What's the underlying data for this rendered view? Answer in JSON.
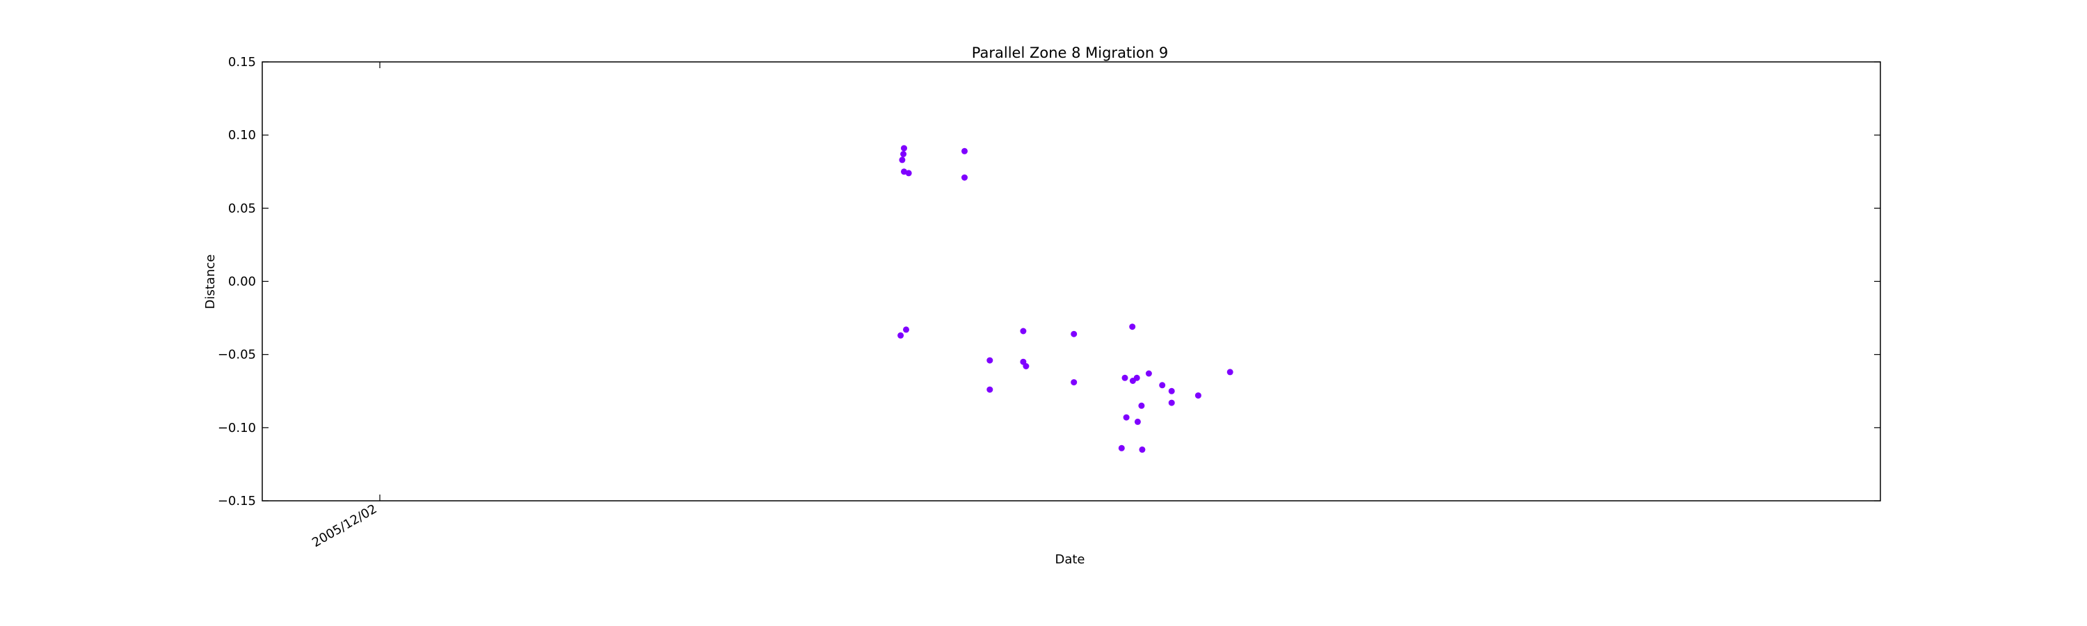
{
  "chart_data": {
    "type": "scatter",
    "title": "Parallel Zone 8 Migration 9",
    "xlabel": "Date",
    "ylabel": "Distance",
    "ylim": [
      -0.15,
      0.15
    ],
    "yticks": [
      "0.15",
      "0.10",
      "0.05",
      "0.00",
      "−0.05",
      "−0.10",
      "−0.15"
    ],
    "ytick_values": [
      0.15,
      0.1,
      0.05,
      0.0,
      -0.05,
      -0.1,
      -0.15
    ],
    "xtick_label": "2005/12/02",
    "grid": false,
    "point_color": "#7f00ff",
    "points": [
      {
        "x": 0.3966,
        "y": 0.091
      },
      {
        "x": 0.3962,
        "y": 0.087
      },
      {
        "x": 0.3955,
        "y": 0.083
      },
      {
        "x": 0.3966,
        "y": 0.075
      },
      {
        "x": 0.3995,
        "y": 0.074
      },
      {
        "x": 0.434,
        "y": 0.089
      },
      {
        "x": 0.434,
        "y": 0.071
      },
      {
        "x": 0.3945,
        "y": -0.037
      },
      {
        "x": 0.3979,
        "y": -0.033
      },
      {
        "x": 0.4496,
        "y": -0.054
      },
      {
        "x": 0.4496,
        "y": -0.074
      },
      {
        "x": 0.4703,
        "y": -0.034
      },
      {
        "x": 0.4703,
        "y": -0.055
      },
      {
        "x": 0.472,
        "y": -0.058
      },
      {
        "x": 0.5016,
        "y": -0.036
      },
      {
        "x": 0.5016,
        "y": -0.069
      },
      {
        "x": 0.5377,
        "y": -0.031
      },
      {
        "x": 0.5331,
        "y": -0.066
      },
      {
        "x": 0.538,
        "y": -0.068
      },
      {
        "x": 0.5405,
        "y": -0.066
      },
      {
        "x": 0.5479,
        "y": -0.063
      },
      {
        "x": 0.534,
        "y": -0.093
      },
      {
        "x": 0.541,
        "y": -0.096
      },
      {
        "x": 0.5434,
        "y": -0.085
      },
      {
        "x": 0.5562,
        "y": -0.071
      },
      {
        "x": 0.562,
        "y": -0.075
      },
      {
        "x": 0.562,
        "y": -0.083
      },
      {
        "x": 0.5784,
        "y": -0.078
      },
      {
        "x": 0.5981,
        "y": -0.062
      },
      {
        "x": 0.5311,
        "y": -0.114
      },
      {
        "x": 0.5438,
        "y": -0.115
      }
    ]
  }
}
